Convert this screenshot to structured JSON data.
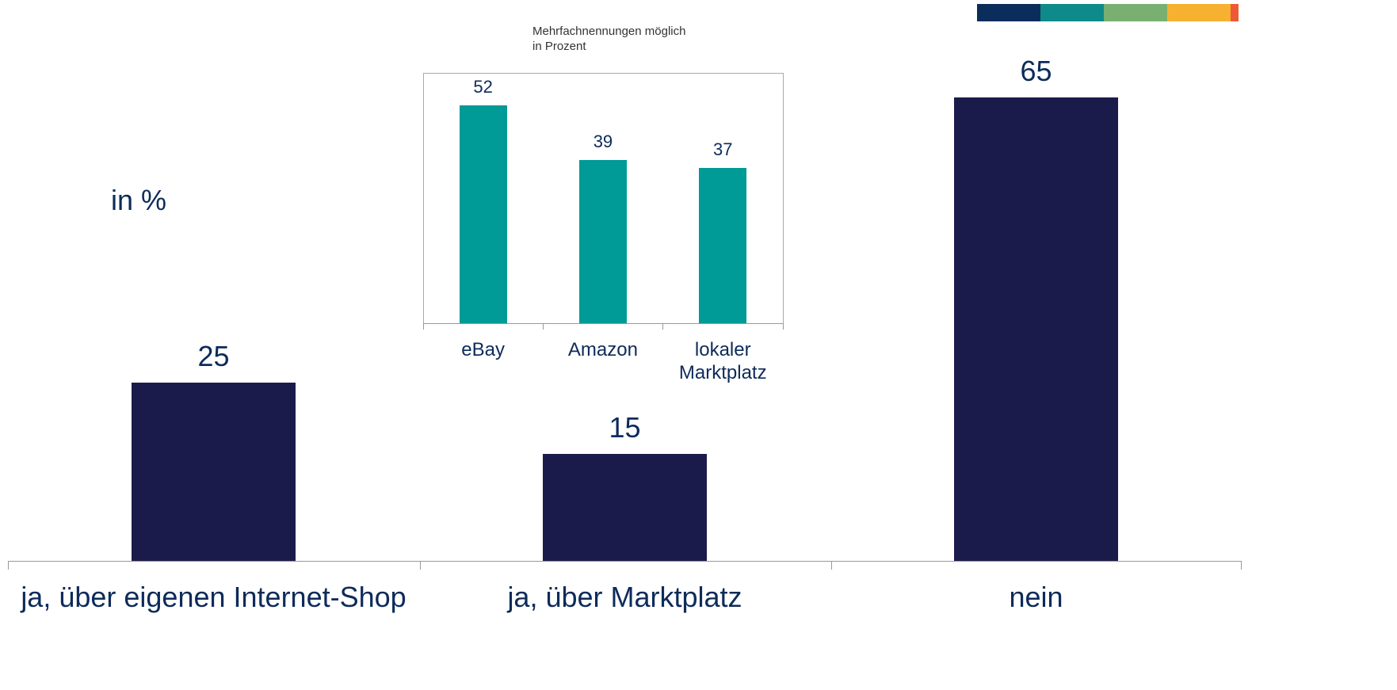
{
  "chart_data": [
    {
      "type": "bar",
      "y_label": "in %",
      "categories": [
        "ja, über eigenen Internet-Shop",
        "ja, über Marktplatz",
        "nein"
      ],
      "values": [
        25,
        15,
        65
      ],
      "color": "#1b1b4b"
    },
    {
      "type": "bar",
      "title": "Mehrfachnennungen möglich",
      "subtitle": "in Prozent",
      "categories": [
        "eBay",
        "Amazon",
        "lokaler Marktplatz"
      ],
      "values": [
        52,
        39,
        37
      ],
      "color": "#009a97"
    }
  ]
}
